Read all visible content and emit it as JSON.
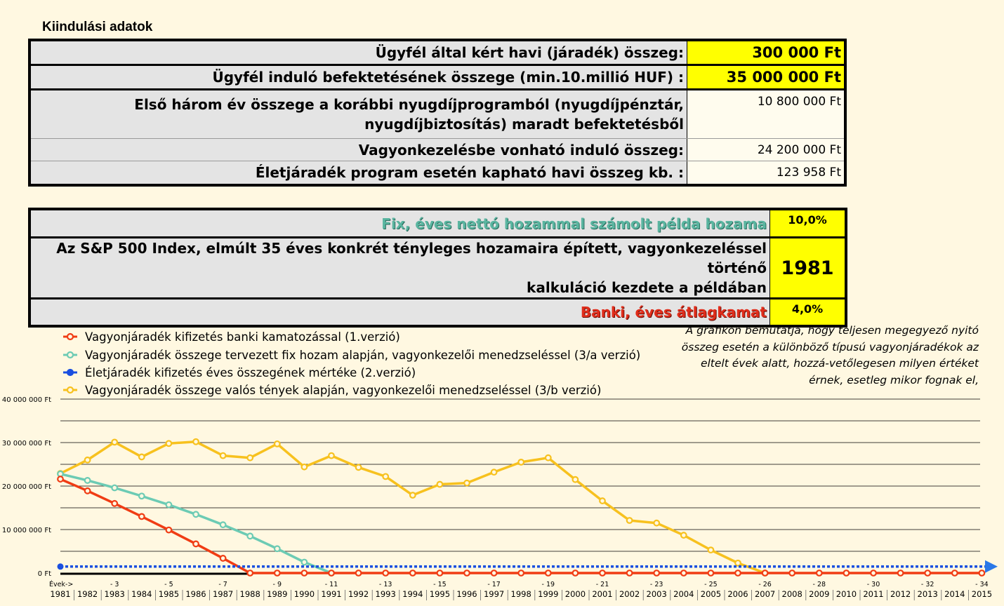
{
  "section_title": "Kiindulási adatok",
  "inputs": [
    {
      "label": "Ügyfél által kért havi  (járadék) összeg:",
      "value": "300 000 Ft"
    },
    {
      "label": "Ügyfél induló befektetésének összege (min.10.millió HUF) :",
      "value": "35 000 000 Ft"
    },
    {
      "label_line1": "Első három év összege a korábbi nyugdíjprogramból (nyugdíjpénztár,",
      "label_line2": "nyugdíjbiztosítás)  maradt befektetésből",
      "value": "10 800 000 Ft"
    },
    {
      "label": "Vagyonkezelésbe vonható induló összeg:",
      "value": "24 200 000 Ft"
    },
    {
      "label": "Életjáradék program esetén kapható havi összeg kb. :",
      "value": "123 958 Ft"
    }
  ],
  "params": [
    {
      "label": "Fix, éves nettó hozammal számolt  példa hozama",
      "value": "10,0%"
    },
    {
      "label_line1": "Az S&P 500 Index, elmúlt 35 éves konkrét tényleges hozamaira épített, vagyonkezeléssel történő",
      "label_line2": "kalkuláció kezdete a példában",
      "value": "1981"
    },
    {
      "label": "Banki, éves átlagkamat",
      "value": "4,0%"
    }
  ],
  "note": "A grafikon bemutatja, hogy teljesen megegyező nyitó összeg esetén a különböző típusú vagyonjáradékok az eltelt évek alatt, hozzá-vetőlegesen milyen értéket érnek, esetleg mikor fognak el,",
  "colors": {
    "red": "#f03c14",
    "teal": "#6ccbb4",
    "blue": "#1a4fe0",
    "yellow": "#f7c11e"
  },
  "chart_data": {
    "type": "line",
    "ylim": [
      0,
      40000000
    ],
    "yticks": [
      "0 Ft",
      "10 000 000 Ft",
      "20 000 000 Ft",
      "30 000 000 Ft",
      "40 000 000 Ft"
    ],
    "x_row1": [
      "Évek->",
      "",
      "- 3",
      "",
      "- 5",
      "",
      "- 7",
      "",
      "- 9",
      "",
      "- 11",
      "",
      "- 13",
      "",
      "- 15",
      "",
      "- 17",
      "",
      "- 19",
      "",
      "- 21",
      "",
      "- 23",
      "",
      "- 25",
      "",
      "- 26",
      "",
      "- 28",
      "",
      "- 30",
      "",
      "- 32",
      "",
      "- 34"
    ],
    "x_row2": [
      "1981",
      "1982",
      "1983",
      "1984",
      "1985",
      "1986",
      "1987",
      "1988",
      "1989",
      "1990",
      "1991",
      "1992",
      "1993",
      "1994",
      "1995",
      "1996",
      "1997",
      "1998",
      "1999",
      "2000",
      "2001",
      "2002",
      "2003",
      "2004",
      "2005",
      "2006",
      "2007",
      "2008",
      "2009",
      "2010",
      "2011",
      "2012",
      "2013",
      "2014",
      "2015"
    ],
    "series": [
      {
        "name": "Vagyonjáradék kifizetés banki kamatozással  (1.verzió)",
        "color": "#f03c14",
        "values": [
          21600000,
          18900000,
          16000000,
          13000000,
          9900000,
          6700000,
          3400000,
          0,
          0,
          0,
          0,
          0,
          0,
          0,
          0,
          0,
          0,
          0,
          0,
          0,
          0,
          0,
          0,
          0,
          0,
          0,
          0,
          0,
          0,
          0,
          0,
          0,
          0,
          0,
          0
        ]
      },
      {
        "name": "Vagyonjáradék összege tervezett fix hozam alapján, vagyonkezelői menedzseléssel (3/a verzió)",
        "color": "#6ccbb4",
        "values": [
          22800000,
          21300000,
          19600000,
          17700000,
          15700000,
          13500000,
          11100000,
          8500000,
          5600000,
          2500000,
          0
        ]
      },
      {
        "name": "Életjáradék kifizetés éves összegének mértéke (2.verzió)",
        "color": "#1a4fe0",
        "values": [
          1487496,
          1487496,
          1487496,
          1487496,
          1487496,
          1487496,
          1487496,
          1487496,
          1487496,
          1487496,
          1487496,
          1487496,
          1487496,
          1487496,
          1487496,
          1487496,
          1487496,
          1487496,
          1487496,
          1487496,
          1487496,
          1487496,
          1487496,
          1487496,
          1487496,
          1487496,
          1487496,
          1487496,
          1487496,
          1487496,
          1487496,
          1487496,
          1487496,
          1487496,
          1487496
        ]
      },
      {
        "name": "Vagyonjáradék összege valós tények alapján, vagyonkezelői menedzseléssel (3/b verzió)",
        "color": "#f7c11e",
        "values": [
          22900000,
          26000000,
          30100000,
          26700000,
          29800000,
          30200000,
          27000000,
          26500000,
          29700000,
          24400000,
          27000000,
          24300000,
          22200000,
          17900000,
          20400000,
          20700000,
          23200000,
          25500000,
          26500000,
          21500000,
          16600000,
          12100000,
          11500000,
          8700000,
          5300000,
          2300000,
          0
        ]
      }
    ]
  }
}
